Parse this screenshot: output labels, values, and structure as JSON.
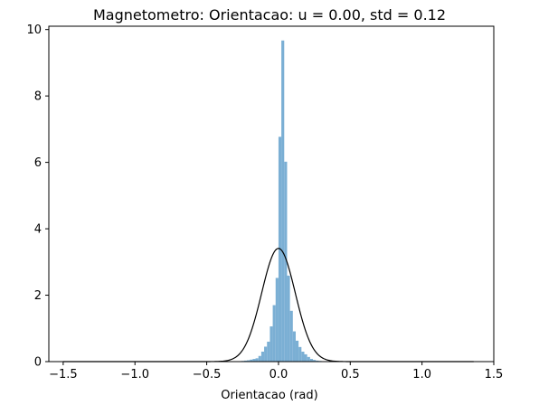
{
  "chart_data": {
    "type": "bar",
    "title": "Magnetometro: Orientacao: u = 0.00,  std = 0.12",
    "xlabel": "Orientacao (rad)",
    "ylabel": "",
    "xlim": [
      -1.6,
      1.5
    ],
    "ylim": [
      0,
      10.1
    ],
    "xticks": [
      -1.5,
      -1.0,
      -0.5,
      0.0,
      0.5,
      1.0,
      1.5
    ],
    "xtick_labels": [
      "−1.5",
      "−1.0",
      "−0.5",
      "0.0",
      "0.5",
      "1.0",
      "1.5"
    ],
    "yticks": [
      0,
      2,
      4,
      6,
      8,
      10
    ],
    "ytick_labels": [
      "0",
      "2",
      "4",
      "6",
      "8",
      "10"
    ],
    "grid": false,
    "series": [
      {
        "kind": "histogram",
        "color": "#7bafd4",
        "bin_width": 0.02,
        "bins": [
          {
            "x0": -0.34,
            "height": 0.004
          },
          {
            "x0": -0.32,
            "height": 0.006
          },
          {
            "x0": -0.3,
            "height": 0.008
          },
          {
            "x0": -0.28,
            "height": 0.012
          },
          {
            "x0": -0.26,
            "height": 0.02
          },
          {
            "x0": -0.24,
            "height": 0.03
          },
          {
            "x0": -0.22,
            "height": 0.04
          },
          {
            "x0": -0.2,
            "height": 0.06
          },
          {
            "x0": -0.18,
            "height": 0.08
          },
          {
            "x0": -0.16,
            "height": 0.1
          },
          {
            "x0": -0.14,
            "height": 0.17
          },
          {
            "x0": -0.12,
            "height": 0.3
          },
          {
            "x0": -0.1,
            "height": 0.45
          },
          {
            "x0": -0.08,
            "height": 0.6
          },
          {
            "x0": -0.06,
            "height": 1.06
          },
          {
            "x0": -0.04,
            "height": 1.7
          },
          {
            "x0": -0.02,
            "height": 2.52
          },
          {
            "x0": 0.0,
            "height": 6.77
          },
          {
            "x0": 0.02,
            "height": 9.67
          },
          {
            "x0": 0.04,
            "height": 6.02
          },
          {
            "x0": 0.06,
            "height": 2.59
          },
          {
            "x0": 0.08,
            "height": 1.53
          },
          {
            "x0": 0.1,
            "height": 0.91
          },
          {
            "x0": 0.12,
            "height": 0.63
          },
          {
            "x0": 0.14,
            "height": 0.44
          },
          {
            "x0": 0.16,
            "height": 0.3
          },
          {
            "x0": 0.18,
            "height": 0.22
          },
          {
            "x0": 0.2,
            "height": 0.14
          },
          {
            "x0": 0.22,
            "height": 0.08
          },
          {
            "x0": 0.24,
            "height": 0.05
          },
          {
            "x0": 0.26,
            "height": 0.03
          },
          {
            "x0": 0.28,
            "height": 0.02
          },
          {
            "x0": 0.3,
            "height": 0.01
          },
          {
            "x0": 0.32,
            "height": 0.006
          },
          {
            "x0": 0.34,
            "height": 0.004
          }
        ]
      },
      {
        "kind": "normal_curve",
        "color": "#000000",
        "mean": 0.0,
        "std": 0.117
      }
    ]
  }
}
